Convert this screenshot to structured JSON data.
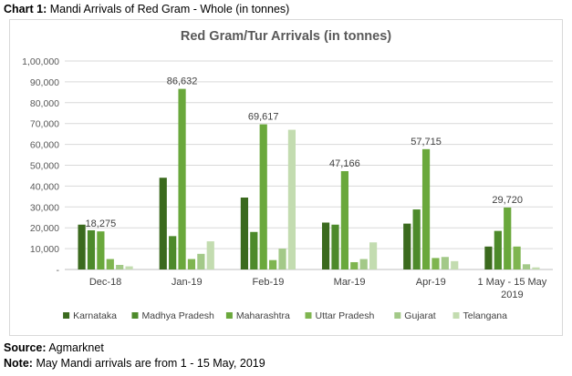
{
  "caption": {
    "label": "Chart 1:",
    "text": "Mandi Arrivals of Red Gram - Whole (in tonnes)"
  },
  "source": {
    "label": "Source:",
    "text": "Agmarknet"
  },
  "note": {
    "label": "Note:",
    "text": "May Mandi arrivals are from 1 - 15 May, 2019"
  },
  "chart_data": {
    "type": "bar",
    "title": "Red Gram/Tur Arrivals (in tonnes)",
    "xlabel": "",
    "ylabel": "",
    "ylim": [
      0,
      100000
    ],
    "yticks": [
      0,
      10000,
      20000,
      30000,
      40000,
      50000,
      60000,
      70000,
      80000,
      90000,
      100000
    ],
    "ytick_labels": [
      "-",
      "10,000",
      "20,000",
      "30,000",
      "40,000",
      "50,000",
      "60,000",
      "70,000",
      "80,000",
      "90,000",
      "1,00,000"
    ],
    "grid": true,
    "legend_position": "bottom",
    "categories": [
      "Dec-18",
      "Jan-19",
      "Feb-19",
      "Mar-19",
      "Apr-19",
      "1 May - 15 May 2019"
    ],
    "series": [
      {
        "name": "Karnataka",
        "color": "#3b6a1e",
        "values": [
          21500,
          44000,
          34500,
          22500,
          22000,
          11000
        ]
      },
      {
        "name": "Madhya Pradesh",
        "color": "#4d8a2b",
        "values": [
          18800,
          16000,
          18000,
          21500,
          28800,
          18500
        ]
      },
      {
        "name": "Maharashtra",
        "color": "#6aa83c",
        "values": [
          18275,
          86632,
          69617,
          47166,
          57715,
          29720
        ]
      },
      {
        "name": "Uttar Pradesh",
        "color": "#7fb550",
        "values": [
          5000,
          5000,
          4500,
          3500,
          5500,
          11000
        ]
      },
      {
        "name": "Gujarat",
        "color": "#a3c988",
        "values": [
          2200,
          7500,
          10000,
          5000,
          6000,
          2500
        ]
      },
      {
        "name": "Telangana",
        "color": "#c3dcb0",
        "values": [
          1500,
          13500,
          67000,
          13000,
          4000,
          1000
        ]
      }
    ],
    "data_labels": [
      {
        "category": "Dec-18",
        "series": "Maharashtra",
        "text": "18,275"
      },
      {
        "category": "Jan-19",
        "series": "Maharashtra",
        "text": "86,632"
      },
      {
        "category": "Feb-19",
        "series": "Maharashtra",
        "text": "69,617"
      },
      {
        "category": "Mar-19",
        "series": "Maharashtra",
        "text": "47,166"
      },
      {
        "category": "Apr-19",
        "series": "Maharashtra",
        "text": "57,715"
      },
      {
        "category": "1 May - 15 May 2019",
        "series": "Maharashtra",
        "text": "29,720"
      }
    ]
  }
}
